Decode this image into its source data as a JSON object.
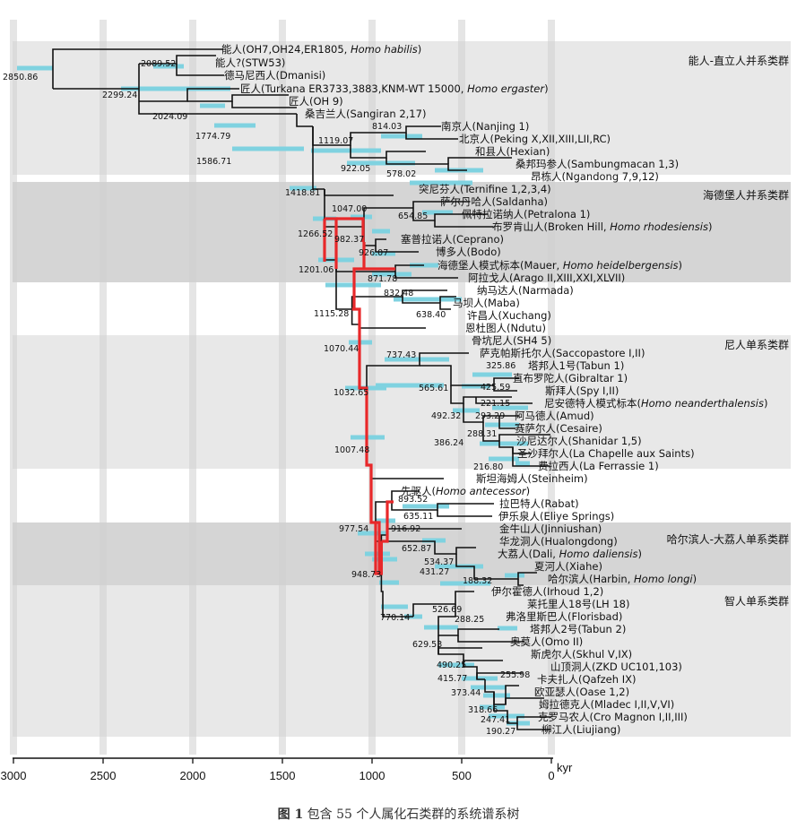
{
  "caption": {
    "fig_label": "图 1",
    "text": "包含 55 个人属化石类群的系统谱系树"
  },
  "colors": {
    "branch": "#111111",
    "highlight": "#e8282a",
    "ci_bar": "#7fd2e0",
    "band_light": "#e8e8e8",
    "band_dark": "#d5d5d5",
    "time_stripe": "#cfcfcf"
  },
  "axis": {
    "unit": "kyr",
    "ticks": [
      3000,
      2500,
      2000,
      1500,
      1000,
      500,
      0
    ],
    "range": [
      3000,
      0
    ]
  },
  "groups": [
    {
      "label": "能人-直立人并系类群",
      "shade": "light"
    },
    {
      "label": "海德堡人并系类群",
      "shade": "dark"
    },
    {
      "label": "尼人单系类群",
      "shade": "light"
    },
    {
      "label": "哈尔滨人-大荔人单系类群",
      "shade": "dark"
    },
    {
      "label": "智人单系类群",
      "shade": "light"
    }
  ],
  "taxa": [
    {
      "zh": "能人",
      "sci": "OH7,OH24,ER1805, ",
      "it": "Homo habilis"
    },
    {
      "zh": "能人?",
      "sci": "STW53"
    },
    {
      "zh": "德马尼西人",
      "sci": "Dmanisi"
    },
    {
      "zh": "匠人",
      "sci": "Turkana ER3733,3883,KNM-WT 15000, ",
      "it": "Homo ergaster"
    },
    {
      "zh": "匠人",
      "sci": "OH 9"
    },
    {
      "zh": "桑吉兰人",
      "sci": "Sangiran 2,17"
    },
    {
      "zh": "南京人",
      "sci": "Nanjing 1"
    },
    {
      "zh": "北京人",
      "sci": "Peking X,XII,XIII,LII,RC"
    },
    {
      "zh": "和县人",
      "sci": "Hexian"
    },
    {
      "zh": "桑邦玛参人",
      "sci": "Sambungmacan 1,3"
    },
    {
      "zh": "昂栋人",
      "sci": "Ngandong 7,9,12"
    },
    {
      "zh": "突尼芬人",
      "sci": "Ternifine 1,2,3,4"
    },
    {
      "zh": "萨尔丹哈人",
      "sci": "Saldanha"
    },
    {
      "zh": "佩特拉诺纳人",
      "sci": "Petralona 1"
    },
    {
      "zh": "布罗肯山人",
      "sci": "Broken Hill, ",
      "it": "Homo rhodesiensis"
    },
    {
      "zh": "塞普拉诺人",
      "sci": "Ceprano"
    },
    {
      "zh": "博多人",
      "sci": "Bodo"
    },
    {
      "zh": "海德堡人模式标本",
      "sci": "Mauer, ",
      "it": "Homo heidelbergensis"
    },
    {
      "zh": "阿拉戈人",
      "sci": "Arago II,XIII,XXI,XLVII"
    },
    {
      "zh": "纳马达人",
      "sci": "Narmada"
    },
    {
      "zh": "马坝人",
      "sci": "Maba"
    },
    {
      "zh": "许昌人",
      "sci": "Xuchang"
    },
    {
      "zh": "恩杜图人",
      "sci": "Ndutu"
    },
    {
      "zh": "骨坑尼人",
      "sci": "SH4 5"
    },
    {
      "zh": "萨克帕斯托尔人",
      "sci": "Saccopastore I,II"
    },
    {
      "zh": "塔邦人1号",
      "sci": "Tabun 1"
    },
    {
      "zh": "直布罗陀人",
      "sci": "Gibraltar 1"
    },
    {
      "zh": "斯拜人",
      "sci": "Spy I,II"
    },
    {
      "zh": "尼安德特人模式标本",
      "sci": "",
      "it": "Homo neanderthalensis"
    },
    {
      "zh": "阿马德人",
      "sci": "Amud"
    },
    {
      "zh": "赛萨尔人",
      "sci": "Cesaire"
    },
    {
      "zh": "沙尼达尔人",
      "sci": "Shanidar 1,5"
    },
    {
      "zh": "圣沙拜尔人",
      "sci": "La Chapelle aux Saints"
    },
    {
      "zh": "费拉西人",
      "sci": "La Ferrassie 1"
    },
    {
      "zh": "斯坦海姆人",
      "sci": "Steinheim"
    },
    {
      "zh": "先驱人",
      "sci": "",
      "it": "Homo antecessor"
    },
    {
      "zh": "拉巴特人",
      "sci": "Rabat"
    },
    {
      "zh": "伊乐泉人",
      "sci": "Eliye Springs"
    },
    {
      "zh": "金牛山人",
      "sci": "Jinniushan"
    },
    {
      "zh": "华龙洞人",
      "sci": "Hualongdong"
    },
    {
      "zh": "大荔人",
      "sci": "Dali, ",
      "it": "Homo daliensis"
    },
    {
      "zh": "夏河人",
      "sci": "Xiahe"
    },
    {
      "zh": "哈尔滨人",
      "sci": "Harbin, ",
      "it": "Homo longi"
    },
    {
      "zh": "伊尔霍德人",
      "sci": "Irhoud 1,2"
    },
    {
      "zh": "莱托里人18号",
      "sci": "LH 18"
    },
    {
      "zh": "弗洛里斯巴人",
      "sci": "Florisbad"
    },
    {
      "zh": "塔邦人2号",
      "sci": "Tabun 2"
    },
    {
      "zh": "奥莫人",
      "sci": "Omo II"
    },
    {
      "zh": "斯虎尔人",
      "sci": "Skhul V,IX"
    },
    {
      "zh": "山顶洞人",
      "sci": "ZKD UC101,103"
    },
    {
      "zh": "卡夫扎人",
      "sci": "Qafzeh IX"
    },
    {
      "zh": "欧亚瑟人",
      "sci": "Oase 1,2"
    },
    {
      "zh": "姆拉德克人",
      "sci": "Mladec I,II,V,VI"
    },
    {
      "zh": "克罗马农人",
      "sci": "Cro Magnon I,II,III"
    },
    {
      "zh": "柳江人",
      "sci": "Liujiang"
    }
  ],
  "nodes": [
    "2850.86",
    "2089.52",
    "2299.24",
    "2024.09",
    "1774.79",
    "1586.71",
    "1418.81",
    "1119.07",
    "814.03",
    "922.05",
    "578.02",
    "1266.52",
    "1047.00",
    "654.85",
    "982.37",
    "926.07",
    "1201.06",
    "871.78",
    "1115.28",
    "832.48",
    "638.40",
    "1070.44",
    "737.43",
    "325.86",
    "425.59",
    "221.15",
    "565.61",
    "293.29",
    "492.32",
    "288.31",
    "216.80",
    "386.24",
    "1032.65",
    "1007.48",
    "893.52",
    "635.11",
    "916.92",
    "652.87",
    "534.37",
    "188.32",
    "431.27",
    "977.54",
    "948.73",
    "526.69",
    "288.25",
    "629.53",
    "770.14",
    "255.98",
    "190.27",
    "247.41",
    "318.66",
    "373.44",
    "415.77",
    "490.25"
  ]
}
